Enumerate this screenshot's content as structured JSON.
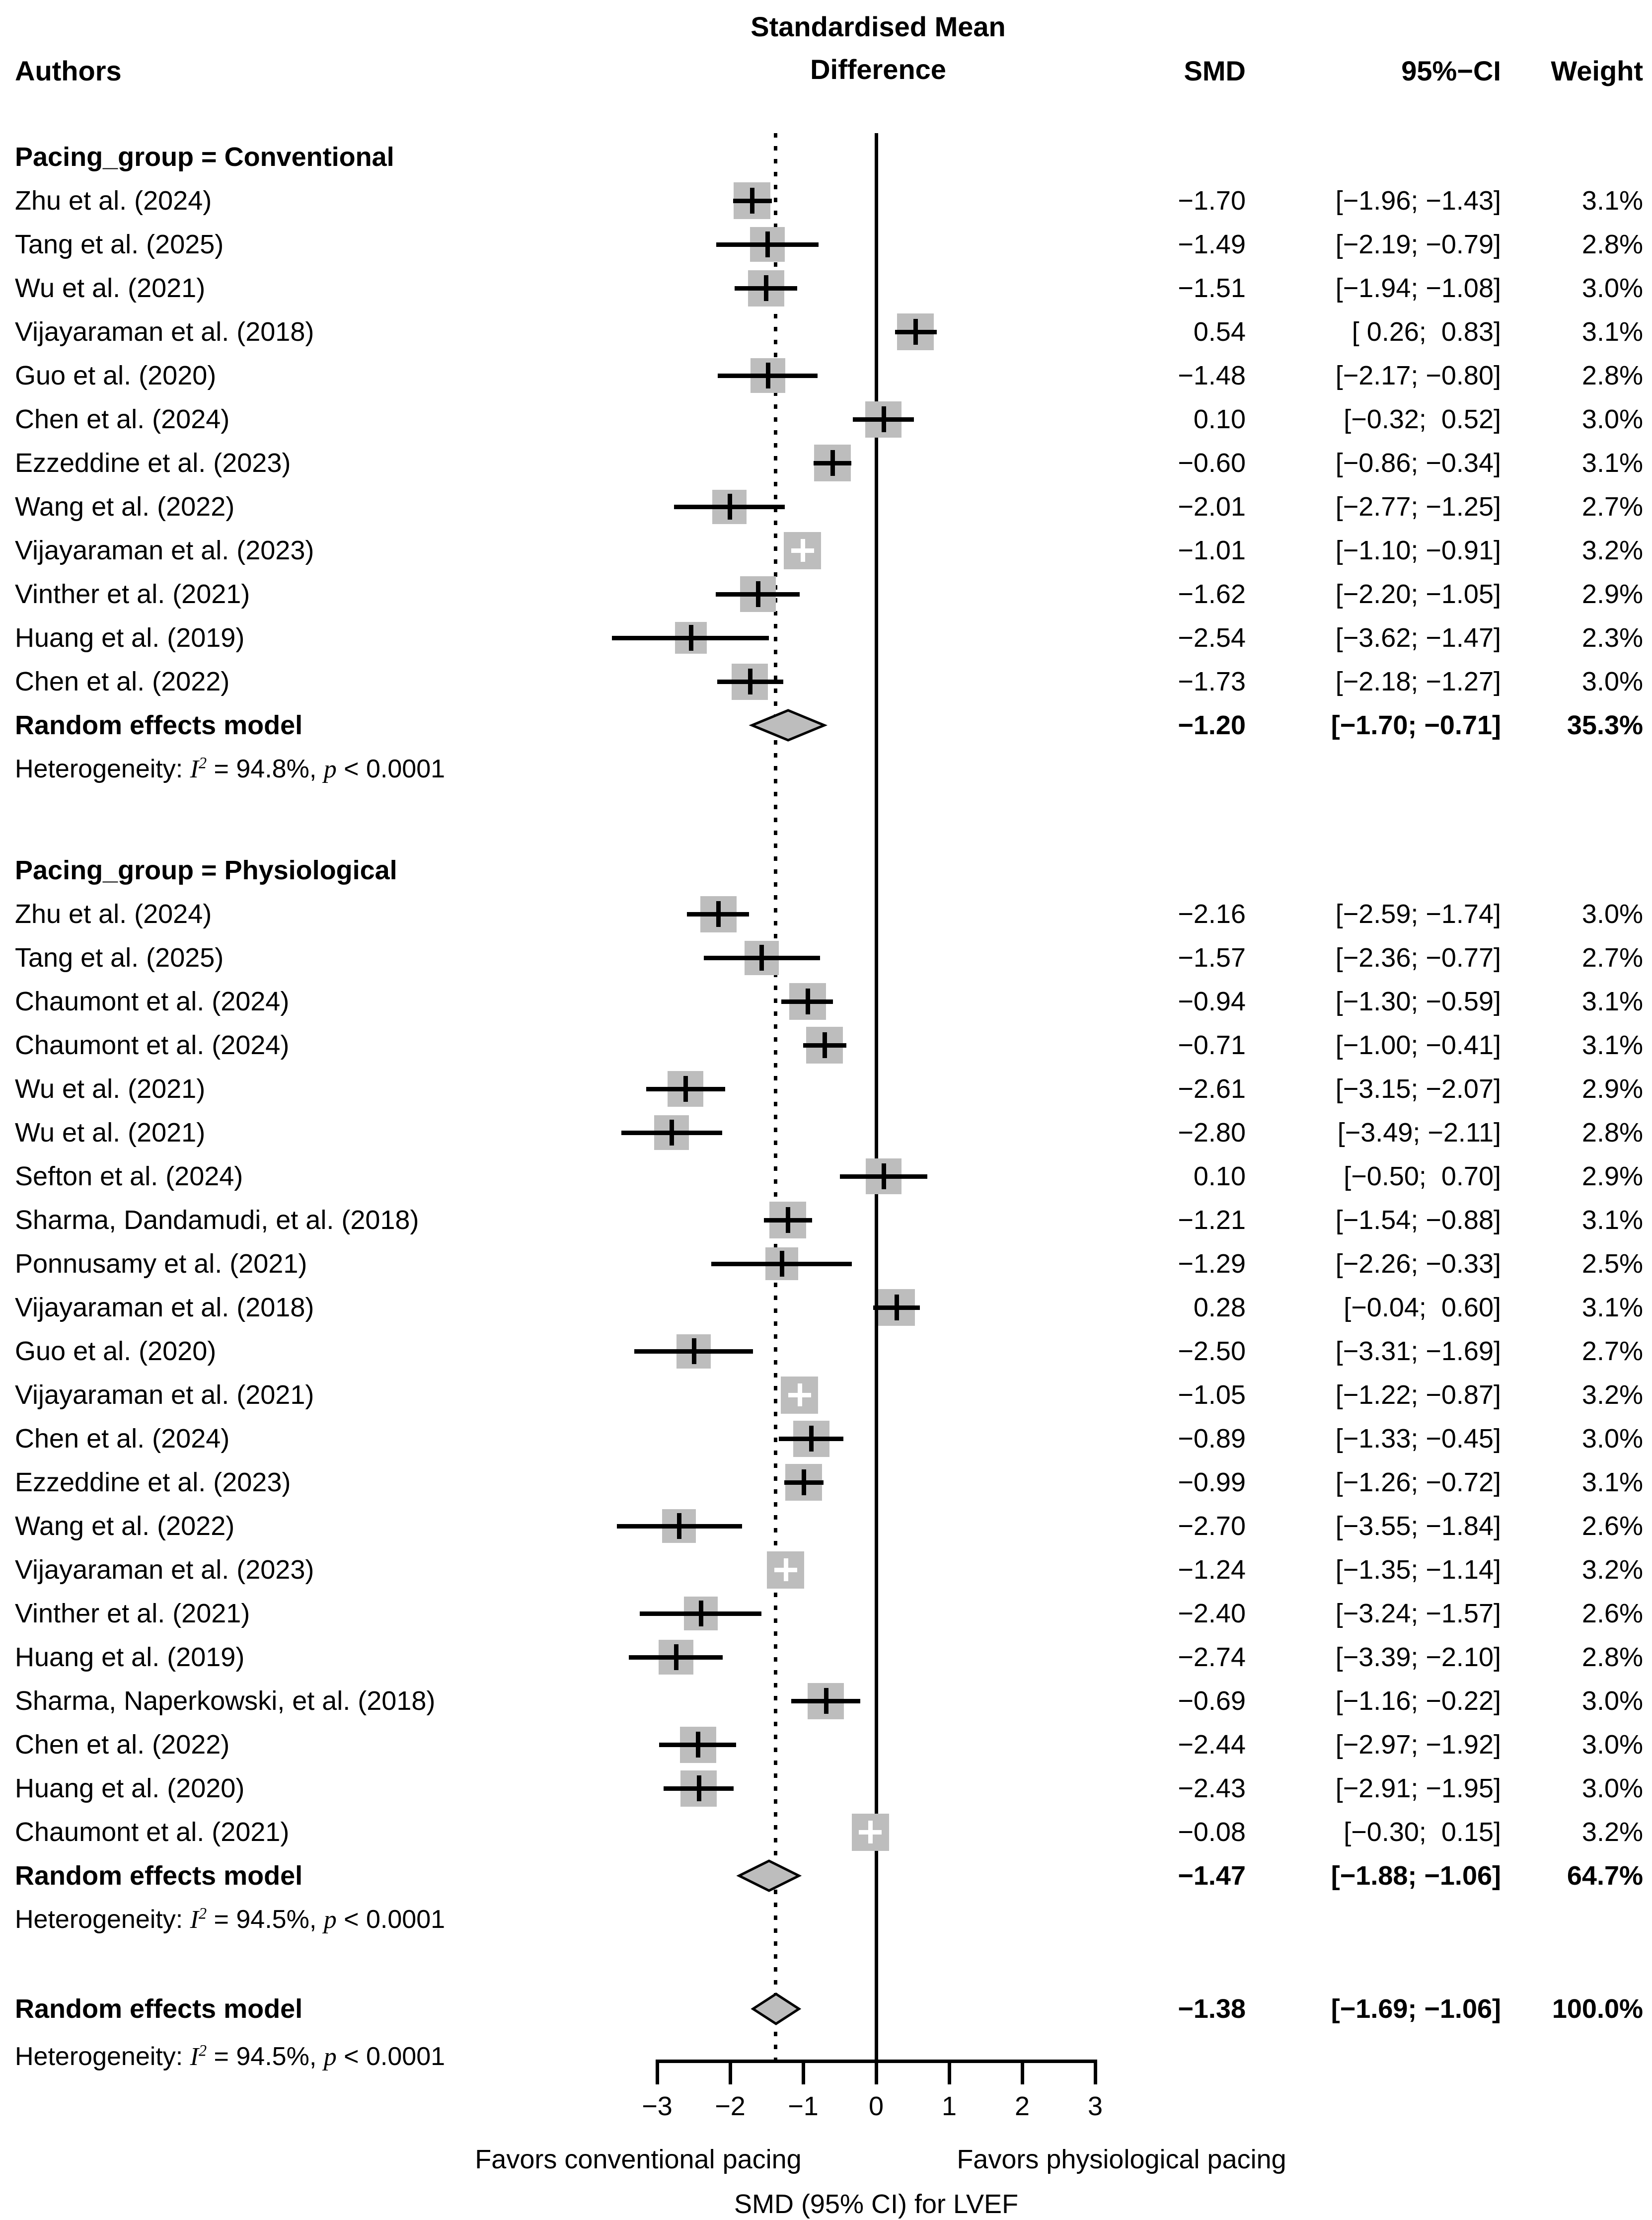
{
  "headers": {
    "authors": "Authors",
    "effect_line1": "Standardised Mean",
    "effect_line2": "Difference",
    "smd": "SMD",
    "ci": "95%−CI",
    "weight": "Weight"
  },
  "chart_data": {
    "type": "forest",
    "xlabel": "SMD (95% CI) for LVEF",
    "favors_left": "Favors conventional pacing",
    "favors_right": "Favors physiological pacing",
    "x_axis": {
      "min": -3,
      "max": 3,
      "ticks": [
        -3,
        -2,
        -1,
        0,
        1,
        2,
        3
      ],
      "tick_labels": [
        "−3",
        "−2",
        "−1",
        "0",
        "1",
        "2",
        "3"
      ]
    },
    "zero_line_x": 0,
    "overall_dotted_line_x": -1.38,
    "colors": {
      "square": "#bdbdbd",
      "diamond_fill": "#bdbdbd",
      "diamond_stroke": "#000000",
      "line": "#000000",
      "text": "#000000",
      "background": "#ffffff"
    },
    "groups": [
      {
        "label": "Pacing_group = Conventional",
        "studies": [
          {
            "author": "Zhu et al. (2024)",
            "smd": -1.7,
            "lo": -1.96,
            "hi": -1.43,
            "smd_text": "−1.70",
            "ci_text": "[−1.96; −1.43]",
            "weight": 3.1,
            "weight_text": "3.1%"
          },
          {
            "author": "Tang et al. (2025)",
            "smd": -1.49,
            "lo": -2.19,
            "hi": -0.79,
            "smd_text": "−1.49",
            "ci_text": "[−2.19; −0.79]",
            "weight": 2.8,
            "weight_text": "2.8%"
          },
          {
            "author": "Wu et al. (2021)",
            "smd": -1.51,
            "lo": -1.94,
            "hi": -1.08,
            "smd_text": "−1.51",
            "ci_text": "[−1.94; −1.08]",
            "weight": 3.0,
            "weight_text": "3.0%"
          },
          {
            "author": "Vijayaraman et al. (2018)",
            "smd": 0.54,
            "lo": 0.26,
            "hi": 0.83,
            "smd_text": "0.54",
            "ci_text": "[ 0.26;  0.83]",
            "weight": 3.1,
            "weight_text": "3.1%"
          },
          {
            "author": "Guo et al. (2020)",
            "smd": -1.48,
            "lo": -2.17,
            "hi": -0.8,
            "smd_text": "−1.48",
            "ci_text": "[−2.17; −0.80]",
            "weight": 2.8,
            "weight_text": "2.8%"
          },
          {
            "author": "Chen et al. (2024)",
            "smd": 0.1,
            "lo": -0.32,
            "hi": 0.52,
            "smd_text": "0.10",
            "ci_text": "[−0.32;  0.52]",
            "weight": 3.0,
            "weight_text": "3.0%"
          },
          {
            "author": "Ezzeddine et al. (2023)",
            "smd": -0.6,
            "lo": -0.86,
            "hi": -0.34,
            "smd_text": "−0.60",
            "ci_text": "[−0.86; −0.34]",
            "weight": 3.1,
            "weight_text": "3.1%"
          },
          {
            "author": "Wang et al. (2022)",
            "smd": -2.01,
            "lo": -2.77,
            "hi": -1.25,
            "smd_text": "−2.01",
            "ci_text": "[−2.77; −1.25]",
            "weight": 2.7,
            "weight_text": "2.7%"
          },
          {
            "author": "Vijayaraman et al. (2023)",
            "smd": -1.01,
            "lo": -1.1,
            "hi": -0.91,
            "smd_text": "−1.01",
            "ci_text": "[−1.10; −0.91]",
            "weight": 3.2,
            "weight_text": "3.2%"
          },
          {
            "author": "Vinther et al. (2021)",
            "smd": -1.62,
            "lo": -2.2,
            "hi": -1.05,
            "smd_text": "−1.62",
            "ci_text": "[−2.20; −1.05]",
            "weight": 2.9,
            "weight_text": "2.9%"
          },
          {
            "author": "Huang et al. (2019)",
            "smd": -2.54,
            "lo": -3.62,
            "hi": -1.47,
            "smd_text": "−2.54",
            "ci_text": "[−3.62; −1.47]",
            "weight": 2.3,
            "weight_text": "2.3%"
          },
          {
            "author": "Chen et al. (2022)",
            "smd": -1.73,
            "lo": -2.18,
            "hi": -1.27,
            "smd_text": "−1.73",
            "ci_text": "[−2.18; −1.27]",
            "weight": 3.0,
            "weight_text": "3.0%"
          }
        ],
        "summary": {
          "label": "Random effects model",
          "smd": -1.2,
          "lo": -1.7,
          "hi": -0.71,
          "smd_text": "−1.20",
          "ci_text": "[−1.70; −0.71]",
          "weight_text": "35.3%"
        },
        "heterogeneity": {
          "prefix": "Heterogeneity: ",
          "stat_symbol": "I",
          "stat_sup": "2",
          "stat_value": " = 94.8%, ",
          "p_symbol": "p",
          "p_value": " < 0.0001"
        }
      },
      {
        "label": "Pacing_group = Physiological",
        "studies": [
          {
            "author": "Zhu et al. (2024)",
            "smd": -2.16,
            "lo": -2.59,
            "hi": -1.74,
            "smd_text": "−2.16",
            "ci_text": "[−2.59; −1.74]",
            "weight": 3.0,
            "weight_text": "3.0%"
          },
          {
            "author": "Tang et al. (2025)",
            "smd": -1.57,
            "lo": -2.36,
            "hi": -0.77,
            "smd_text": "−1.57",
            "ci_text": "[−2.36; −0.77]",
            "weight": 2.7,
            "weight_text": "2.7%"
          },
          {
            "author": "Chaumont et al. (2024)",
            "smd": -0.94,
            "lo": -1.3,
            "hi": -0.59,
            "smd_text": "−0.94",
            "ci_text": "[−1.30; −0.59]",
            "weight": 3.1,
            "weight_text": "3.1%"
          },
          {
            "author": "Chaumont et al. (2024)",
            "smd": -0.71,
            "lo": -1.0,
            "hi": -0.41,
            "smd_text": "−0.71",
            "ci_text": "[−1.00; −0.41]",
            "weight": 3.1,
            "weight_text": "3.1%"
          },
          {
            "author": "Wu et al. (2021)",
            "smd": -2.61,
            "lo": -3.15,
            "hi": -2.07,
            "smd_text": "−2.61",
            "ci_text": "[−3.15; −2.07]",
            "weight": 2.9,
            "weight_text": "2.9%"
          },
          {
            "author": "Wu et al. (2021)",
            "smd": -2.8,
            "lo": -3.49,
            "hi": -2.11,
            "smd_text": "−2.80",
            "ci_text": "[−3.49; −2.11]",
            "weight": 2.8,
            "weight_text": "2.8%"
          },
          {
            "author": "Sefton et al. (2024)",
            "smd": 0.1,
            "lo": -0.5,
            "hi": 0.7,
            "smd_text": "0.10",
            "ci_text": "[−0.50;  0.70]",
            "weight": 2.9,
            "weight_text": "2.9%"
          },
          {
            "author": "Sharma, Dandamudi, et al. (2018)",
            "smd": -1.21,
            "lo": -1.54,
            "hi": -0.88,
            "smd_text": "−1.21",
            "ci_text": "[−1.54; −0.88]",
            "weight": 3.1,
            "weight_text": "3.1%"
          },
          {
            "author": "Ponnusamy et al. (2021)",
            "smd": -1.29,
            "lo": -2.26,
            "hi": -0.33,
            "smd_text": "−1.29",
            "ci_text": "[−2.26; −0.33]",
            "weight": 2.5,
            "weight_text": "2.5%"
          },
          {
            "author": "Vijayaraman et al. (2018)",
            "smd": 0.28,
            "lo": -0.04,
            "hi": 0.6,
            "smd_text": "0.28",
            "ci_text": "[−0.04;  0.60]",
            "weight": 3.1,
            "weight_text": "3.1%"
          },
          {
            "author": "Guo et al. (2020)",
            "smd": -2.5,
            "lo": -3.31,
            "hi": -1.69,
            "smd_text": "−2.50",
            "ci_text": "[−3.31; −1.69]",
            "weight": 2.7,
            "weight_text": "2.7%"
          },
          {
            "author": "Vijayaraman et al. (2021)",
            "smd": -1.05,
            "lo": -1.22,
            "hi": -0.87,
            "smd_text": "−1.05",
            "ci_text": "[−1.22; −0.87]",
            "weight": 3.2,
            "weight_text": "3.2%"
          },
          {
            "author": "Chen et al. (2024)",
            "smd": -0.89,
            "lo": -1.33,
            "hi": -0.45,
            "smd_text": "−0.89",
            "ci_text": "[−1.33; −0.45]",
            "weight": 3.0,
            "weight_text": "3.0%"
          },
          {
            "author": "Ezzeddine et al. (2023)",
            "smd": -0.99,
            "lo": -1.26,
            "hi": -0.72,
            "smd_text": "−0.99",
            "ci_text": "[−1.26; −0.72]",
            "weight": 3.1,
            "weight_text": "3.1%"
          },
          {
            "author": "Wang et al. (2022)",
            "smd": -2.7,
            "lo": -3.55,
            "hi": -1.84,
            "smd_text": "−2.70",
            "ci_text": "[−3.55; −1.84]",
            "weight": 2.6,
            "weight_text": "2.6%"
          },
          {
            "author": "Vijayaraman et al. (2023)",
            "smd": -1.24,
            "lo": -1.35,
            "hi": -1.14,
            "smd_text": "−1.24",
            "ci_text": "[−1.35; −1.14]",
            "weight": 3.2,
            "weight_text": "3.2%"
          },
          {
            "author": "Vinther et al. (2021)",
            "smd": -2.4,
            "lo": -3.24,
            "hi": -1.57,
            "smd_text": "−2.40",
            "ci_text": "[−3.24; −1.57]",
            "weight": 2.6,
            "weight_text": "2.6%"
          },
          {
            "author": "Huang et al. (2019)",
            "smd": -2.74,
            "lo": -3.39,
            "hi": -2.1,
            "smd_text": "−2.74",
            "ci_text": "[−3.39; −2.10]",
            "weight": 2.8,
            "weight_text": "2.8%"
          },
          {
            "author": "Sharma, Naperkowski, et al. (2018)",
            "smd": -0.69,
            "lo": -1.16,
            "hi": -0.22,
            "smd_text": "−0.69",
            "ci_text": "[−1.16; −0.22]",
            "weight": 3.0,
            "weight_text": "3.0%"
          },
          {
            "author": "Chen et al. (2022)",
            "smd": -2.44,
            "lo": -2.97,
            "hi": -1.92,
            "smd_text": "−2.44",
            "ci_text": "[−2.97; −1.92]",
            "weight": 3.0,
            "weight_text": "3.0%"
          },
          {
            "author": "Huang et al. (2020)",
            "smd": -2.43,
            "lo": -2.91,
            "hi": -1.95,
            "smd_text": "−2.43",
            "ci_text": "[−2.91; −1.95]",
            "weight": 3.0,
            "weight_text": "3.0%"
          },
          {
            "author": "Chaumont et al. (2021)",
            "smd": -0.08,
            "lo": -0.3,
            "hi": 0.15,
            "smd_text": "−0.08",
            "ci_text": "[−0.30;  0.15]",
            "weight": 3.2,
            "weight_text": "3.2%"
          }
        ],
        "summary": {
          "label": "Random effects model",
          "smd": -1.47,
          "lo": -1.88,
          "hi": -1.06,
          "smd_text": "−1.47",
          "ci_text": "[−1.88; −1.06]",
          "weight_text": "64.7%"
        },
        "heterogeneity": {
          "prefix": "Heterogeneity: ",
          "stat_symbol": "I",
          "stat_sup": "2",
          "stat_value": " = 94.5%, ",
          "p_symbol": "p",
          "p_value": " < 0.0001"
        }
      }
    ],
    "overall": {
      "summary": {
        "label": "Random effects model",
        "smd": -1.38,
        "lo": -1.69,
        "hi": -1.06,
        "smd_text": "−1.38",
        "ci_text": "[−1.69; −1.06]",
        "weight_text": "100.0%"
      },
      "heterogeneity": {
        "prefix": "Heterogeneity: ",
        "stat_symbol": "I",
        "stat_sup": "2",
        "stat_value": " = 94.5%, ",
        "p_symbol": "p",
        "p_value": " < 0.0001"
      }
    }
  }
}
